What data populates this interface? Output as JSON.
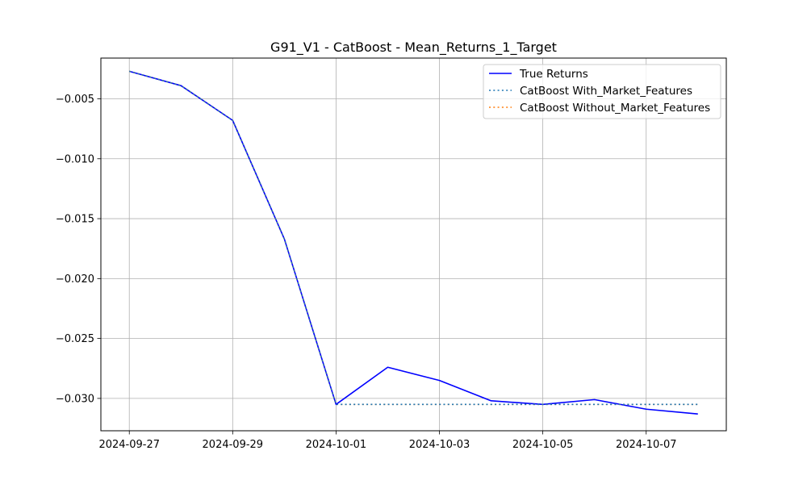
{
  "chart_data": {
    "type": "line",
    "title": "G91_V1 - CatBoost - Mean_Returns_1_Target",
    "xlabel": "",
    "ylabel": "",
    "x": [
      "2024-09-27",
      "2024-09-28",
      "2024-09-29",
      "2024-09-30",
      "2024-10-01",
      "2024-10-02",
      "2024-10-03",
      "2024-10-04",
      "2024-10-05",
      "2024-10-06",
      "2024-10-07",
      "2024-10-08"
    ],
    "xticks": [
      "2024-09-27",
      "2024-09-29",
      "2024-10-01",
      "2024-10-03",
      "2024-10-05",
      "2024-10-07"
    ],
    "yticks": [
      -0.03,
      -0.025,
      -0.02,
      -0.015,
      -0.01,
      -0.005
    ],
    "ytick_labels": [
      "−0.030",
      "−0.025",
      "−0.020",
      "−0.015",
      "−0.010",
      "−0.005"
    ],
    "xlim": [
      "2024-09-26.45",
      "2024-10-08.55"
    ],
    "ylim": [
      -0.0327,
      -0.0016
    ],
    "grid": true,
    "legend_position": "top-right",
    "series": [
      {
        "name": "True Returns",
        "style": "solid",
        "color": "#0000ff",
        "values": [
          -0.0027,
          -0.0039,
          -0.0068,
          -0.0167,
          -0.0305,
          -0.0274,
          -0.0285,
          -0.0302,
          -0.0305,
          -0.0301,
          -0.0309,
          -0.0313
        ]
      },
      {
        "name": "CatBoost With_Market_Features",
        "style": "dotted",
        "color": "#1f77b4",
        "values": [
          -0.0027,
          -0.0039,
          -0.0068,
          -0.0167,
          -0.0305,
          -0.0305,
          -0.0305,
          -0.0305,
          -0.0305,
          -0.0305,
          -0.0305,
          -0.0305
        ]
      },
      {
        "name": "CatBoost Without_Market_Features",
        "style": "dotted",
        "color": "#ff7f0e",
        "values": [
          -0.0027,
          -0.0039,
          -0.0068,
          -0.0167,
          -0.0305,
          -0.0305,
          -0.0305,
          -0.0305,
          -0.0305,
          -0.0305,
          -0.0305,
          -0.0305
        ]
      }
    ]
  }
}
